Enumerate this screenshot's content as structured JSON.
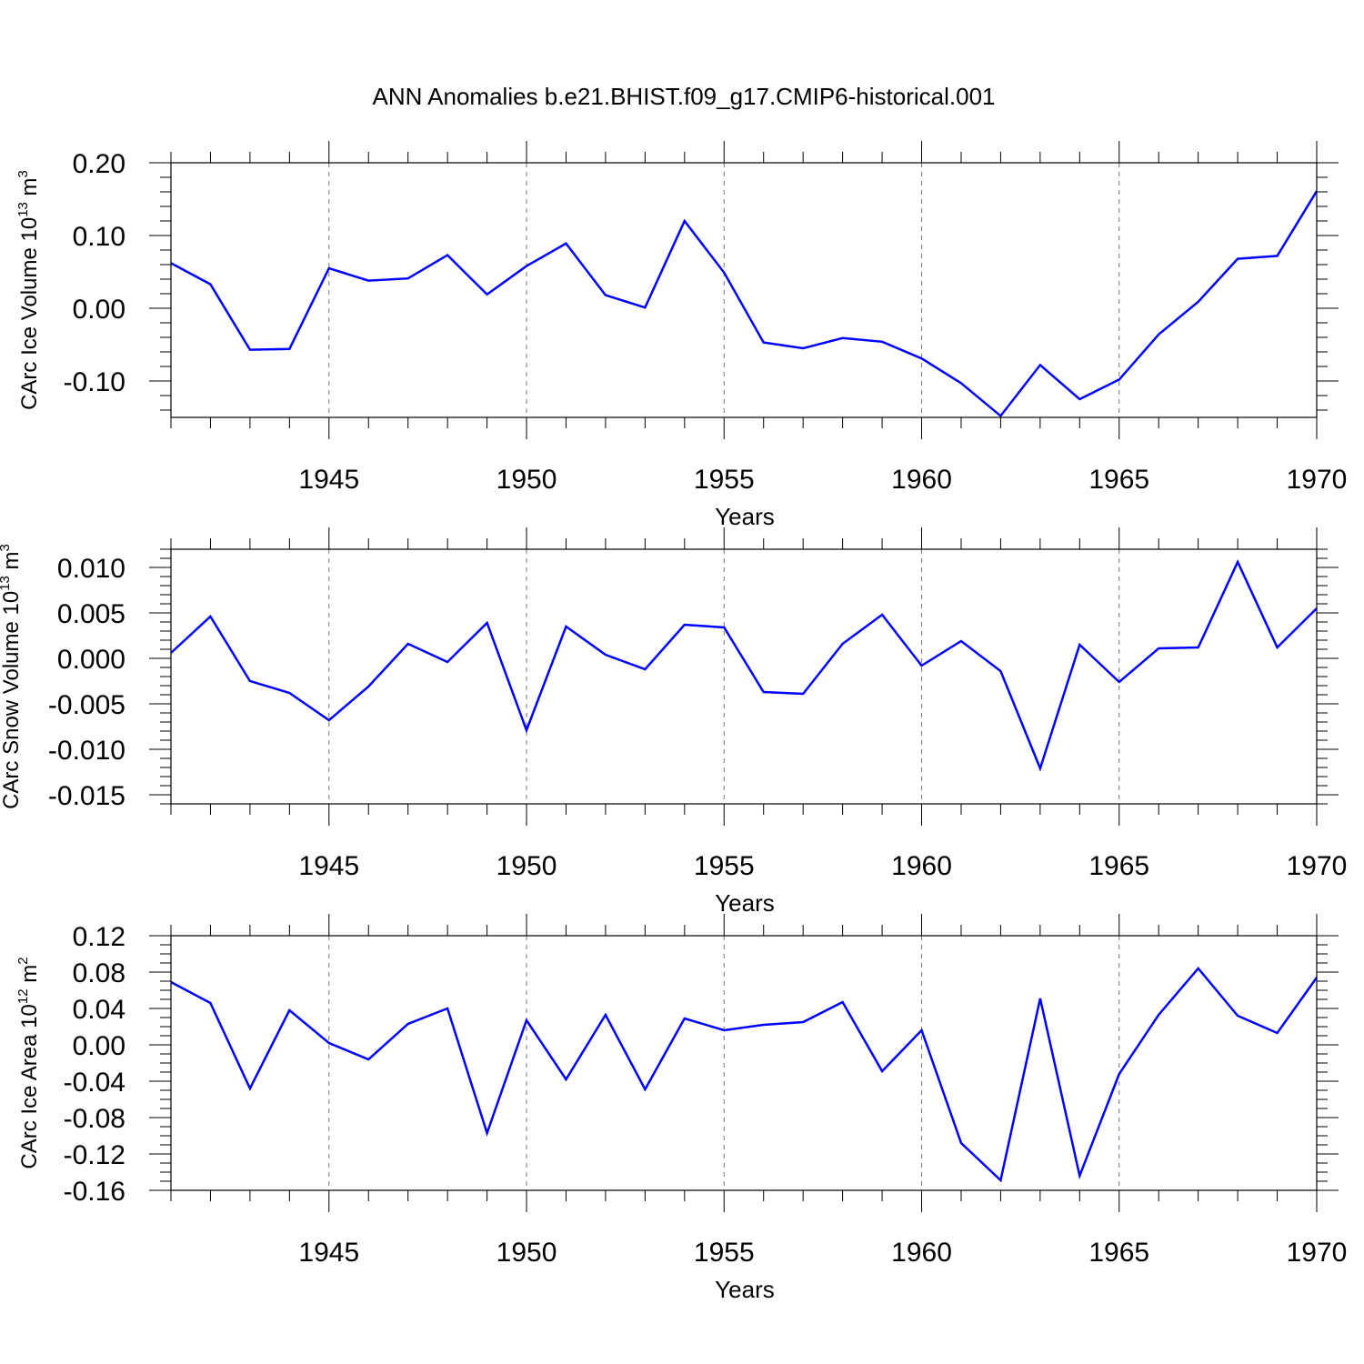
{
  "figure_title": "ANN Anomalies b.e21.BHIST.f09_g17.CMIP6-historical.001",
  "colors": {
    "line": "#0000ff",
    "axis": "#000000",
    "grid": "#777777"
  },
  "chart_data": [
    {
      "type": "line",
      "ylabel": "CArc Ice Volume 10",
      "ylabel_exp": "13",
      "ylabel_unit": "m",
      "ylabel_unit_exp": "3",
      "xlabel": "Years",
      "xlim": [
        1941,
        1970
      ],
      "ylim": [
        -0.15,
        0.2
      ],
      "xticks": [
        1945,
        1950,
        1955,
        1960,
        1965,
        1970
      ],
      "yticks": [
        0.2,
        0.1,
        0.0,
        -0.1
      ],
      "ytick_labels": [
        "0.20",
        "0.10",
        "0.00",
        "-0.10"
      ],
      "yminor_step": 0.02,
      "grid_x": true,
      "x": [
        1941,
        1942,
        1943,
        1944,
        1945,
        1946,
        1947,
        1948,
        1949,
        1950,
        1951,
        1952,
        1953,
        1954,
        1955,
        1956,
        1957,
        1958,
        1959,
        1960,
        1961,
        1962,
        1963,
        1964,
        1965,
        1966,
        1967,
        1968,
        1969,
        1970
      ],
      "series": [
        {
          "values": [
            0.062,
            0.033,
            -0.057,
            -0.056,
            0.055,
            0.038,
            0.041,
            0.073,
            0.019,
            0.058,
            0.089,
            0.018,
            0.001,
            0.12,
            0.049,
            -0.047,
            -0.055,
            -0.041,
            -0.046,
            -0.069,
            -0.103,
            -0.148,
            -0.078,
            -0.125,
            -0.098,
            -0.036,
            0.009,
            0.068,
            0.072,
            0.161
          ]
        }
      ]
    },
    {
      "type": "line",
      "ylabel": "CArc Snow Volume 10",
      "ylabel_exp": "13",
      "ylabel_unit": "m",
      "ylabel_unit_exp": "3",
      "xlabel": "Years",
      "xlim": [
        1941,
        1970
      ],
      "ylim": [
        -0.016,
        0.012
      ],
      "xticks": [
        1945,
        1950,
        1955,
        1960,
        1965,
        1970
      ],
      "yticks": [
        0.01,
        0.005,
        0.0,
        -0.005,
        -0.01,
        -0.015
      ],
      "ytick_labels": [
        "0.010",
        "0.005",
        "0.000",
        "-0.005",
        "-0.010",
        "-0.015"
      ],
      "yminor_step": 0.001,
      "grid_x": true,
      "x": [
        1941,
        1942,
        1943,
        1944,
        1945,
        1946,
        1947,
        1948,
        1949,
        1950,
        1951,
        1952,
        1953,
        1954,
        1955,
        1956,
        1957,
        1958,
        1959,
        1960,
        1961,
        1962,
        1963,
        1964,
        1965,
        1966,
        1967,
        1968,
        1969,
        1970
      ],
      "series": [
        {
          "values": [
            0.0006,
            0.0046,
            -0.0025,
            -0.0038,
            -0.0068,
            -0.0031,
            0.0016,
            -0.0004,
            0.0039,
            -0.0079,
            0.0035,
            0.0004,
            -0.0012,
            0.0037,
            0.0034,
            -0.0037,
            -0.0039,
            0.0016,
            0.0048,
            -0.0008,
            0.0019,
            -0.0014,
            -0.0121,
            0.0015,
            -0.0026,
            0.0011,
            0.0012,
            0.0106,
            0.0012,
            0.0055
          ]
        }
      ]
    },
    {
      "type": "line",
      "ylabel": "CArc Ice Area 10",
      "ylabel_exp": "12",
      "ylabel_unit": "m",
      "ylabel_unit_exp": "2",
      "xlabel": "Years",
      "xlim": [
        1941,
        1970
      ],
      "ylim": [
        -0.16,
        0.12
      ],
      "xticks": [
        1945,
        1950,
        1955,
        1960,
        1965,
        1970
      ],
      "yticks": [
        0.12,
        0.08,
        0.04,
        0.0,
        -0.04,
        -0.08,
        -0.12,
        -0.16
      ],
      "ytick_labels": [
        "0.12",
        "0.08",
        "0.04",
        "0.00",
        "-0.04",
        "-0.08",
        "-0.12",
        "-0.16"
      ],
      "yminor_step": 0.01,
      "grid_x": true,
      "x": [
        1941,
        1942,
        1943,
        1944,
        1945,
        1946,
        1947,
        1948,
        1949,
        1950,
        1951,
        1952,
        1953,
        1954,
        1955,
        1956,
        1957,
        1958,
        1959,
        1960,
        1961,
        1962,
        1963,
        1964,
        1965,
        1966,
        1967,
        1968,
        1969,
        1970
      ],
      "series": [
        {
          "values": [
            0.069,
            0.046,
            -0.048,
            0.038,
            0.002,
            -0.016,
            0.023,
            0.04,
            -0.097,
            0.027,
            -0.038,
            0.033,
            -0.049,
            0.029,
            0.016,
            0.022,
            0.025,
            0.047,
            -0.029,
            0.016,
            -0.108,
            -0.149,
            0.051,
            -0.144,
            -0.032,
            0.033,
            0.084,
            0.032,
            0.013,
            0.074
          ]
        }
      ]
    }
  ]
}
